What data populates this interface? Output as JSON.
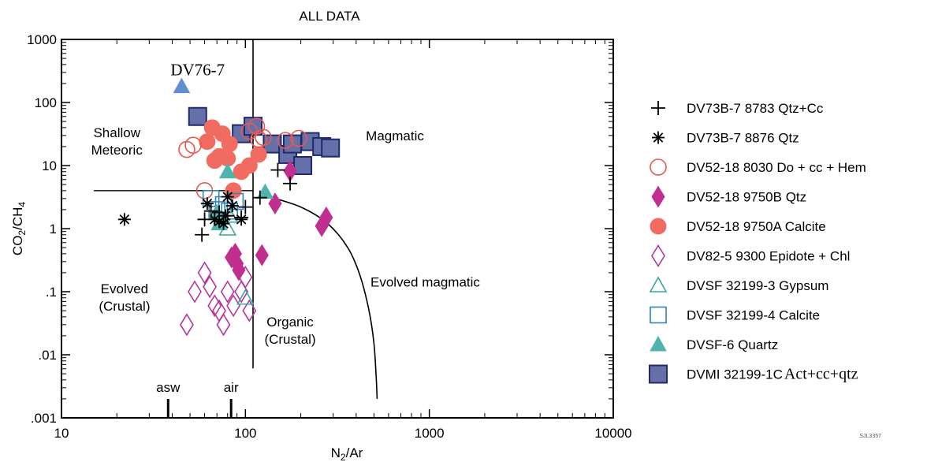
{
  "chart_data": {
    "type": "scatter",
    "title": "ALL DATA",
    "xlabel": {
      "base": "N",
      "sub": "2",
      "rest": "/Ar"
    },
    "ylabel": {
      "a": "CO",
      "sub1": "2",
      "b": "/CH",
      "sub2": "4"
    },
    "x_scale": "log",
    "y_scale": "log",
    "xlim": [
      10,
      10000
    ],
    "ylim": [
      0.001,
      1000
    ],
    "x_ticks": [
      {
        "value": 10,
        "label": "10"
      },
      {
        "value": 100,
        "label": "100"
      },
      {
        "value": 1000,
        "label": "1000"
      },
      {
        "value": 10000,
        "label": "10000"
      }
    ],
    "y_ticks": [
      {
        "value": 1000,
        "label": "1000"
      },
      {
        "value": 100,
        "label": "100"
      },
      {
        "value": 10,
        "label": "10"
      },
      {
        "value": 1,
        "label": "1"
      },
      {
        "value": 0.1,
        "label": ".1"
      },
      {
        "value": 0.01,
        "label": ".01"
      },
      {
        "value": 0.001,
        "label": ".001"
      }
    ],
    "regions": [
      {
        "lines": [
          "Shallow",
          "Meteoric"
        ],
        "x": 20,
        "y": 28
      },
      {
        "lines": [
          "Magmatic"
        ],
        "x": 650,
        "y": 25
      },
      {
        "lines": [
          "Evolved",
          "(Crustal)"
        ],
        "x": 22,
        "y": 0.095
      },
      {
        "lines": [
          "Organic",
          "(Crustal)"
        ],
        "x": 175,
        "y": 0.028
      },
      {
        "lines": [
          "Evolved magmatic"
        ],
        "x": 950,
        "y": 0.12
      }
    ],
    "reference_markers": [
      {
        "label": "asw",
        "x": 38
      },
      {
        "label": "air",
        "x": 83.6
      }
    ],
    "annotation": {
      "label": "DV76-7",
      "x": 55,
      "y": 270
    },
    "boundary_lines": {
      "vertical_x": 110,
      "horizontal_y": 4,
      "horizontal_from_x": 15,
      "horizontal_to_x": 110,
      "curve": [
        [
          130,
          3.3
        ],
        [
          200,
          2.2
        ],
        [
          280,
          1.2
        ],
        [
          360,
          0.5
        ],
        [
          420,
          0.18
        ],
        [
          470,
          0.05
        ],
        [
          500,
          0.015
        ],
        [
          515,
          0.004
        ],
        [
          520,
          0.002
        ]
      ]
    },
    "series": [
      {
        "name": "DV73B-7  8783 Qtz+Cc",
        "marker": "plus",
        "color": "#000000",
        "points": [
          [
            58,
            0.8
          ],
          [
            60,
            1.4
          ],
          [
            65,
            1.9
          ],
          [
            72,
            1.8
          ],
          [
            80,
            1.6
          ],
          [
            95,
            1.5
          ],
          [
            120,
            3.1
          ],
          [
            150,
            8.5
          ],
          [
            175,
            5.2
          ],
          [
            100,
            2.2
          ]
        ]
      },
      {
        "name": "DV73B-7  8876 Qtz",
        "marker": "asterisk",
        "color": "#000000",
        "points": [
          [
            22,
            1.4
          ],
          [
            62,
            2.5
          ],
          [
            68,
            1.4
          ],
          [
            72,
            1.3
          ],
          [
            76,
            1.2
          ],
          [
            78,
            1.6
          ],
          [
            80,
            3.2
          ],
          [
            85,
            2.3
          ],
          [
            95,
            1.4
          ]
        ]
      },
      {
        "name": "DV52-18  8030 Do + cc + Hem",
        "marker": "circle-open",
        "color": "#e8584f",
        "points": [
          [
            48,
            18
          ],
          [
            52,
            21
          ],
          [
            60,
            4
          ],
          [
            105,
            35
          ],
          [
            115,
            42
          ],
          [
            118,
            26
          ],
          [
            125,
            28
          ],
          [
            165,
            25
          ],
          [
            195,
            27
          ]
        ]
      },
      {
        "name": "DV52-18  9750B Qtz",
        "marker": "diamond-filled",
        "color": "#c02f90",
        "points": [
          [
            84,
            0.35
          ],
          [
            88,
            0.4
          ],
          [
            90,
            0.28
          ],
          [
            92,
            0.22
          ],
          [
            123,
            0.38
          ],
          [
            145,
            2.5
          ],
          [
            175,
            8.2
          ],
          [
            260,
            1.1
          ],
          [
            275,
            1.5
          ]
        ]
      },
      {
        "name": "DV52-18  9750A Calcite",
        "marker": "circle-filled",
        "color": "#f26b61",
        "points": [
          [
            62,
            24
          ],
          [
            66,
            40
          ],
          [
            68,
            12
          ],
          [
            72,
            14
          ],
          [
            75,
            32
          ],
          [
            80,
            13
          ],
          [
            82,
            22
          ],
          [
            86,
            4
          ],
          [
            95,
            8
          ],
          [
            105,
            10
          ],
          [
            118,
            15
          ]
        ]
      },
      {
        "name": "DV82-5  9300 Epidote + Chl",
        "marker": "diamond-open",
        "color": "#b5379b",
        "points": [
          [
            48,
            0.03
          ],
          [
            53,
            0.1
          ],
          [
            60,
            0.2
          ],
          [
            64,
            0.12
          ],
          [
            68,
            0.06
          ],
          [
            72,
            0.05
          ],
          [
            76,
            0.03
          ],
          [
            80,
            0.1
          ],
          [
            86,
            0.06
          ],
          [
            95,
            0.1
          ],
          [
            105,
            0.05
          ],
          [
            100,
            0.17
          ]
        ]
      },
      {
        "name": "DVSF  32199-3 Gypsum",
        "marker": "triangle-open",
        "color": "#3aa79a",
        "points": [
          [
            80,
            1.0
          ],
          [
            82,
            1.6
          ],
          [
            100,
            0.08
          ]
        ]
      },
      {
        "name": "DVSF  32199-4 Calcite",
        "marker": "square-open",
        "color": "#2f84b8",
        "points": [
          [
            65,
            3.0
          ],
          [
            70,
            2.0
          ],
          [
            76,
            2.4
          ],
          [
            82,
            1.9
          ],
          [
            88,
            2.7
          ]
        ]
      },
      {
        "name": "DVSF-6  Quartz",
        "marker": "triangle-filled",
        "color": "#4fb3ae",
        "points": [
          [
            70,
            1.8
          ],
          [
            72,
            1.2
          ],
          [
            74,
            1.5
          ],
          [
            80,
            8
          ],
          [
            128,
            3.8
          ]
        ]
      },
      {
        "name": "DVMI  32199-1C Act+cc+qtz",
        "marker": "square-filled",
        "color": "#6670a8",
        "points": [
          [
            55,
            60
          ],
          [
            95,
            32
          ],
          [
            110,
            42
          ],
          [
            140,
            22
          ],
          [
            170,
            15
          ],
          [
            180,
            22
          ],
          [
            205,
            10
          ],
          [
            225,
            24
          ],
          [
            260,
            20
          ],
          [
            290,
            19
          ]
        ]
      },
      {
        "name": "DV76-7",
        "marker": "triangle-filled",
        "color": "#5f8fcf",
        "in_legend": false,
        "points": [
          [
            45,
            180
          ]
        ]
      }
    ],
    "legend_placement": "right",
    "legend": [
      {
        "prefix": "DV73B-7  8783 Qtz",
        "suffix": "+Cc",
        "serif_suffix": false
      },
      {
        "prefix": "DV73B-7  8876 Qtz",
        "suffix": "",
        "serif_suffix": false
      },
      {
        "prefix": "DV52-18  8030 Do + cc + Hem",
        "suffix": "",
        "serif_suffix": false
      },
      {
        "prefix": "DV52-18  9750B Qtz",
        "suffix": "",
        "serif_suffix": false
      },
      {
        "prefix": "DV52-18  9750A Calcite",
        "suffix": "",
        "serif_suffix": false
      },
      {
        "prefix": "DV82-5  9300 Epidote + Chl",
        "suffix": "",
        "serif_suffix": false
      },
      {
        "prefix": "DVSF  32199-3 Gypsum",
        "suffix": "",
        "serif_suffix": false
      },
      {
        "prefix": "DVSF  32199-4 Calcite",
        "suffix": "",
        "serif_suffix": false
      },
      {
        "prefix": "DVSF-6  Quartz",
        "suffix": "",
        "serif_suffix": false
      },
      {
        "prefix": "DVMI  32199-1C",
        "suffix": "Act+cc+qtz",
        "serif_suffix": true
      }
    ],
    "footnote": "SJL3357"
  }
}
